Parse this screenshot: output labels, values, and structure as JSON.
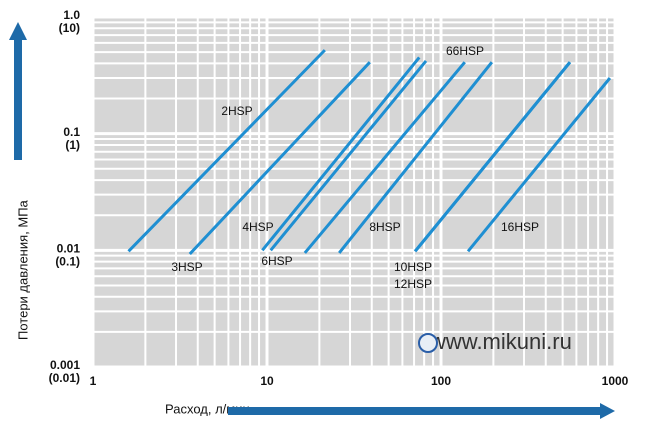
{
  "chart_data": {
    "type": "line",
    "log_x": true,
    "log_y": true,
    "grid": true,
    "x_label": "Расход, л/мин",
    "y_label": "Потери давления, МПа",
    "watermark": "www.mikuni.ru",
    "xlim": [
      1,
      1000
    ],
    "xticks": [
      1,
      10,
      100,
      1000
    ],
    "ylim": [
      0.001,
      1
    ],
    "yticks": [
      {
        "value": 1,
        "label": "1.0"
      },
      0.1,
      0.01,
      0.001
    ],
    "ytick_sublabels": [
      "(10)",
      "(1)",
      "(0.1)",
      "(0.01)"
    ],
    "color": "#1f8fd2",
    "series": [
      {
        "name": "2HSP",
        "x": [
          1.6,
          21.5
        ],
        "values": [
          0.0098,
          0.52
        ]
      },
      {
        "name": "3HSP",
        "x": [
          3.6,
          39
        ],
        "values": [
          0.0093,
          0.41
        ]
      },
      {
        "name": "4HSP",
        "x": [
          9.4,
          75
        ],
        "values": [
          0.01,
          0.45
        ]
      },
      {
        "name": "6HSP",
        "x": [
          10.5,
          82
        ],
        "values": [
          0.01,
          0.42
        ]
      },
      {
        "name": "66HSP",
        "x": [
          16.5,
          137
        ],
        "values": [
          0.0095,
          0.41
        ]
      },
      {
        "name": "8HSP",
        "x": [
          26,
          196
        ],
        "values": [
          0.0095,
          0.41
        ]
      },
      {
        "name": "10HSP",
        "x": [
          71,
          551
        ],
        "values": [
          0.0098,
          0.41
        ]
      },
      {
        "name": "12HSP",
        "x": [
          71,
          551
        ],
        "values": [
          0.0098,
          0.41
        ]
      },
      {
        "name": "16HSP",
        "x": [
          143,
          935
        ],
        "values": [
          0.0098,
          0.3
        ]
      }
    ]
  }
}
